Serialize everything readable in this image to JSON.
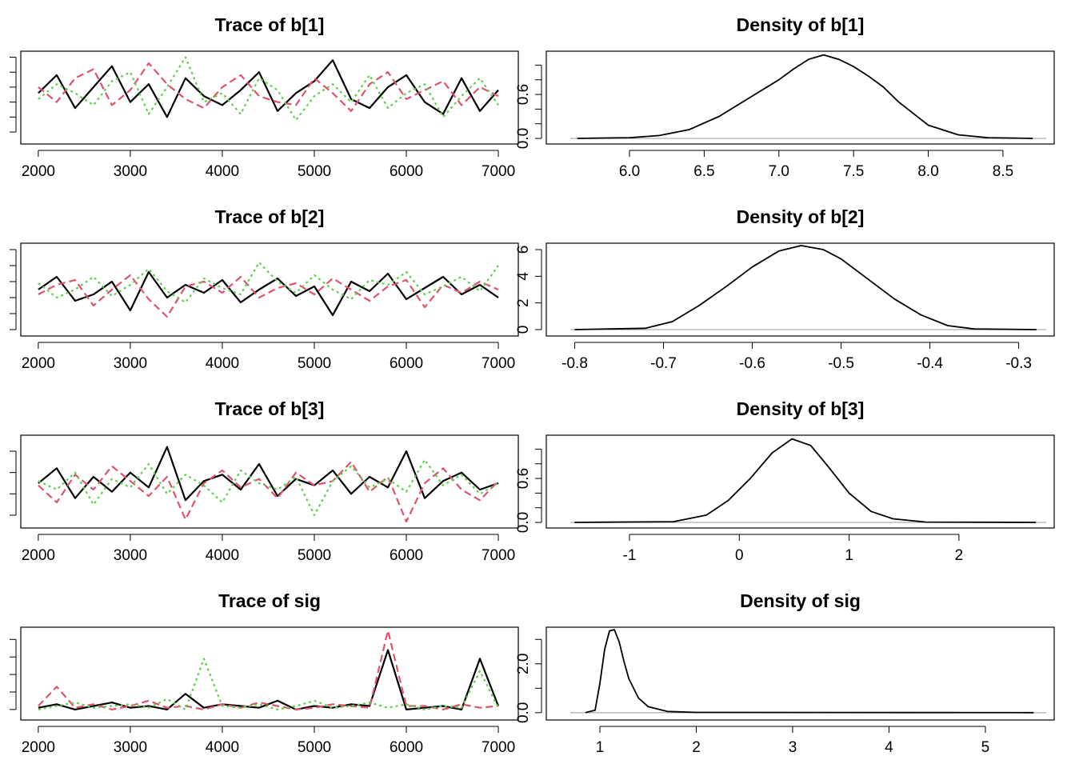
{
  "chart_data": [
    {
      "type": "line",
      "title": "Trace of b[1]",
      "x": [
        2000,
        2200,
        2400,
        2600,
        2800,
        3000,
        3200,
        3400,
        3600,
        3800,
        4000,
        4200,
        4400,
        4600,
        4800,
        5000,
        5200,
        5400,
        5600,
        5800,
        6000,
        6200,
        6400,
        6600,
        6800,
        7000
      ],
      "series": [
        {
          "color": "#000000",
          "values": [
            7.3,
            7.9,
            6.8,
            7.5,
            8.2,
            7.0,
            7.6,
            6.5,
            7.8,
            7.2,
            6.9,
            7.4,
            8.0,
            6.7,
            7.3,
            7.7,
            8.4,
            7.1,
            6.8,
            7.5,
            7.9,
            7.0,
            6.6,
            7.8,
            6.7,
            7.4
          ]
        },
        {
          "color": "#DF536B",
          "values": [
            7.5,
            7.0,
            7.8,
            8.1,
            6.9,
            7.4,
            8.3,
            7.6,
            7.1,
            6.8,
            7.5,
            7.9,
            7.2,
            7.0,
            6.9,
            7.8,
            7.3,
            6.7,
            7.6,
            8.0,
            7.1,
            7.4,
            7.7,
            6.9,
            7.5,
            7.2
          ]
        },
        {
          "color": "#61D04F",
          "values": [
            7.1,
            7.6,
            7.3,
            6.9,
            7.7,
            8.0,
            6.6,
            7.5,
            8.5,
            7.0,
            7.3,
            6.6,
            7.8,
            7.4,
            6.4,
            7.2,
            7.6,
            7.0,
            7.9,
            6.8,
            7.3,
            7.6,
            6.5,
            7.2,
            7.8,
            6.9
          ]
        }
      ],
      "xlim": [
        1810,
        7217
      ],
      "xticks": [
        2000,
        3000,
        4000,
        5000,
        6000,
        7000
      ],
      "ylim": [
        5.6,
        8.7
      ],
      "ytick_marks": [
        6,
        6.5,
        7,
        7.5,
        8,
        8.5
      ]
    },
    {
      "type": "line",
      "title": "Density of b[1]",
      "x": [
        5.65,
        6.0,
        6.2,
        6.4,
        6.6,
        6.8,
        7.0,
        7.1,
        7.2,
        7.3,
        7.4,
        7.5,
        7.6,
        7.7,
        7.8,
        8.0,
        8.2,
        8.4,
        8.7
      ],
      "series": [
        {
          "color": "#000000",
          "values": [
            0,
            0.01,
            0.04,
            0.12,
            0.3,
            0.55,
            0.8,
            0.95,
            1.08,
            1.14,
            1.08,
            0.98,
            0.85,
            0.7,
            0.5,
            0.18,
            0.05,
            0.01,
            0
          ]
        }
      ],
      "xlim": [
        5.443,
        8.843
      ],
      "xticks": [
        {
          "value": 6,
          "label": "6.0"
        },
        6.5,
        {
          "value": 7,
          "label": "7.0"
        },
        7.5,
        {
          "value": 8,
          "label": "8.0"
        },
        8.5
      ],
      "ylim": [
        -0.076,
        1.19
      ],
      "ytick_marks": [
        0,
        0.2,
        0.4,
        0.6,
        0.8,
        1.0
      ],
      "yticks": [
        {
          "value": 0,
          "label": "0.0"
        },
        {
          "value": 0.6,
          "label": "0.6"
        }
      ]
    },
    {
      "type": "line",
      "title": "Trace of b[2]",
      "x": [
        2000,
        2200,
        2400,
        2600,
        2800,
        3000,
        3200,
        3400,
        3600,
        3800,
        4000,
        4200,
        4400,
        4600,
        4800,
        5000,
        5200,
        5400,
        5600,
        5800,
        6000,
        6200,
        6400,
        6600,
        6800,
        7000
      ],
      "series": [
        {
          "color": "#000000",
          "values": [
            -0.55,
            -0.47,
            -0.62,
            -0.58,
            -0.5,
            -0.68,
            -0.44,
            -0.6,
            -0.52,
            -0.57,
            -0.49,
            -0.63,
            -0.55,
            -0.48,
            -0.59,
            -0.53,
            -0.71,
            -0.5,
            -0.56,
            -0.45,
            -0.61,
            -0.54,
            -0.47,
            -0.58,
            -0.52,
            -0.6
          ]
        },
        {
          "color": "#DF536B",
          "values": [
            -0.58,
            -0.52,
            -0.49,
            -0.65,
            -0.55,
            -0.46,
            -0.61,
            -0.72,
            -0.53,
            -0.5,
            -0.57,
            -0.47,
            -0.6,
            -0.54,
            -0.51,
            -0.58,
            -0.48,
            -0.55,
            -0.62,
            -0.53,
            -0.49,
            -0.66,
            -0.52,
            -0.57,
            -0.5,
            -0.55
          ]
        },
        {
          "color": "#61D04F",
          "values": [
            -0.51,
            -0.6,
            -0.55,
            -0.47,
            -0.59,
            -0.52,
            -0.42,
            -0.56,
            -0.63,
            -0.48,
            -0.54,
            -0.58,
            -0.38,
            -0.5,
            -0.57,
            -0.46,
            -0.55,
            -0.61,
            -0.49,
            -0.52,
            -0.44,
            -0.58,
            -0.53,
            -0.47,
            -0.56,
            -0.4
          ]
        }
      ],
      "xlim": [
        1810,
        7217
      ],
      "xticks": [
        2000,
        3000,
        4000,
        5000,
        6000,
        7000
      ],
      "ylim": [
        -0.84,
        -0.26
      ],
      "ytick_marks": [
        -0.8,
        -0.7,
        -0.6,
        -0.5,
        -0.4,
        -0.3
      ]
    },
    {
      "type": "line",
      "title": "Density of b[2]",
      "x": [
        -0.8,
        -0.72,
        -0.69,
        -0.66,
        -0.63,
        -0.6,
        -0.57,
        -0.545,
        -0.52,
        -0.5,
        -0.47,
        -0.44,
        -0.41,
        -0.38,
        -0.35,
        -0.28
      ],
      "series": [
        {
          "color": "#000000",
          "values": [
            0,
            0.1,
            0.6,
            1.8,
            3.2,
            4.7,
            5.9,
            6.3,
            6.0,
            5.3,
            3.8,
            2.3,
            1.1,
            0.3,
            0.05,
            0
          ]
        }
      ],
      "xlim": [
        -0.832,
        -0.26
      ],
      "xticks": [
        -0.8,
        -0.7,
        -0.6,
        -0.5,
        -0.4,
        -0.3
      ],
      "ylim": [
        -0.48,
        6.48
      ],
      "ytick_marks": [
        0,
        2,
        4,
        6
      ],
      "yticks": [
        0,
        2,
        4,
        6
      ]
    },
    {
      "type": "line",
      "title": "Trace of b[3]",
      "x": [
        2000,
        2200,
        2400,
        2600,
        2800,
        3000,
        3200,
        3400,
        3600,
        3800,
        4000,
        4200,
        4400,
        4600,
        4800,
        5000,
        5200,
        5400,
        5600,
        5800,
        6000,
        6200,
        6400,
        6600,
        6800,
        7000
      ],
      "series": [
        {
          "color": "#000000",
          "values": [
            0.5,
            1.2,
            -0.2,
            0.8,
            0.1,
            1.0,
            0.3,
            2.2,
            -0.3,
            0.6,
            0.9,
            0.2,
            1.4,
            -0.1,
            0.7,
            0.4,
            1.1,
            0.0,
            0.8,
            0.3,
            2.0,
            -0.2,
            0.6,
            1.0,
            0.2,
            0.5
          ]
        },
        {
          "color": "#DF536B",
          "values": [
            0.4,
            -0.4,
            0.9,
            0.2,
            1.3,
            0.6,
            -0.1,
            0.8,
            -1.2,
            0.5,
            1.1,
            0.3,
            0.7,
            -0.2,
            1.0,
            0.4,
            0.6,
            1.5,
            0.1,
            0.8,
            -1.3,
            0.5,
            1.2,
            0.2,
            -0.3,
            0.6
          ]
        },
        {
          "color": "#61D04F",
          "values": [
            0.6,
            0.2,
            1.0,
            -0.5,
            0.7,
            0.3,
            1.4,
            0.0,
            0.9,
            0.4,
            -0.4,
            1.1,
            0.5,
            0.2,
            0.8,
            -1.0,
            0.6,
            1.3,
            0.3,
            0.7,
            0.1,
            1.6,
            0.4,
            0.9,
            0.0,
            0.5
          ]
        }
      ],
      "xlim": [
        1810,
        7217
      ],
      "xticks": [
        2000,
        3000,
        4000,
        5000,
        6000,
        7000
      ],
      "ylim": [
        -1.6,
        2.75
      ],
      "ytick_marks": [
        -1,
        0,
        1,
        2
      ]
    },
    {
      "type": "line",
      "title": "Density of b[3]",
      "x": [
        -1.5,
        -0.6,
        -0.3,
        -0.1,
        0.1,
        0.3,
        0.48,
        0.65,
        0.8,
        1.0,
        1.2,
        1.4,
        1.7,
        2.7
      ],
      "series": [
        {
          "color": "#000000",
          "values": [
            0,
            0.01,
            0.1,
            0.3,
            0.6,
            0.95,
            1.14,
            1.05,
            0.78,
            0.4,
            0.15,
            0.05,
            0.005,
            0
          ]
        }
      ],
      "xlim": [
        -1.757,
        2.867
      ],
      "xticks": [
        -1,
        0,
        1,
        2
      ],
      "ylim": [
        -0.076,
        1.19
      ],
      "ytick_marks": [
        0,
        0.2,
        0.4,
        0.6,
        0.8,
        1.0
      ],
      "yticks": [
        {
          "value": 0,
          "label": "0.0"
        },
        {
          "value": 0.6,
          "label": "0.6"
        }
      ]
    },
    {
      "type": "line",
      "title": "Trace of sig",
      "x": [
        2000,
        2200,
        2400,
        2600,
        2800,
        3000,
        3200,
        3400,
        3600,
        3800,
        4000,
        4200,
        4400,
        4600,
        4800,
        5000,
        5200,
        5400,
        5600,
        5800,
        6000,
        6200,
        6400,
        6600,
        6800,
        7000
      ],
      "series": [
        {
          "color": "#000000",
          "values": [
            1.1,
            1.3,
            1.0,
            1.2,
            1.4,
            1.1,
            1.2,
            1.0,
            1.9,
            1.1,
            1.3,
            1.2,
            1.1,
            1.5,
            1.0,
            1.2,
            1.1,
            1.3,
            1.2,
            4.4,
            1.0,
            1.1,
            1.2,
            1.0,
            3.9,
            1.2
          ]
        },
        {
          "color": "#DF536B",
          "values": [
            1.2,
            2.3,
            1.1,
            1.3,
            1.0,
            1.2,
            1.5,
            1.1,
            1.2,
            1.0,
            1.3,
            1.1,
            1.4,
            1.2,
            1.0,
            1.1,
            1.3,
            1.2,
            1.1,
            5.5,
            1.2,
            1.2,
            1.0,
            1.3,
            1.1,
            1.2
          ]
        },
        {
          "color": "#61D04F",
          "values": [
            1.0,
            1.2,
            1.4,
            1.1,
            1.2,
            1.3,
            1.1,
            1.6,
            1.0,
            3.9,
            1.2,
            1.1,
            1.3,
            1.0,
            1.2,
            1.5,
            1.1,
            1.2,
            1.4,
            1.1,
            1.3,
            1.0,
            1.2,
            1.1,
            3.2,
            1.1
          ]
        }
      ],
      "xlim": [
        1810,
        7217
      ],
      "xticks": [
        2000,
        3000,
        4000,
        5000,
        6000,
        7000
      ],
      "ylim": [
        0.4,
        5.7
      ],
      "ytick_marks": [
        1,
        2,
        3,
        4,
        5
      ]
    },
    {
      "type": "line",
      "title": "Density of sig",
      "x": [
        0.85,
        0.95,
        1.0,
        1.05,
        1.1,
        1.15,
        1.2,
        1.25,
        1.3,
        1.4,
        1.5,
        1.7,
        2.0,
        5.5
      ],
      "series": [
        {
          "color": "#000000",
          "values": [
            0,
            0.1,
            1.2,
            2.6,
            3.35,
            3.4,
            2.9,
            2.1,
            1.4,
            0.6,
            0.25,
            0.05,
            0.01,
            0
          ]
        }
      ],
      "xlim": [
        0.444,
        5.714
      ],
      "xticks": [
        1,
        2,
        3,
        4,
        5
      ],
      "ylim": [
        -0.3,
        3.5
      ],
      "ytick_marks": [
        0,
        1,
        2,
        3
      ],
      "yticks": [
        {
          "value": 0,
          "label": "0.0"
        },
        {
          "value": 2,
          "label": "2.0"
        }
      ]
    }
  ]
}
